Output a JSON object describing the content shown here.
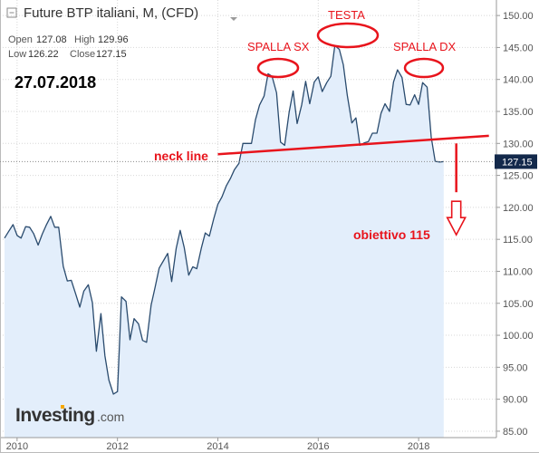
{
  "header": {
    "title": "Future BTP italiani, M, (CFD)",
    "ohlc": [
      {
        "label": "Open",
        "value": "127.08"
      },
      {
        "label": "High",
        "value": "129.96"
      },
      {
        "label": "Low",
        "value": "126.22"
      },
      {
        "label": "Close",
        "value": "127.15"
      }
    ]
  },
  "date_label": "27.07.2018",
  "annotations": {
    "head": "TESTA",
    "left_shoulder": "SPALLA SX",
    "right_shoulder": "SPALLA DX",
    "neckline": "neck line",
    "target": "obiettivo 115"
  },
  "logo": {
    "text": "Investing",
    "suffix": ".com"
  },
  "current_price": "127.15",
  "colors": {
    "line": "#2a4b6e",
    "fill": "#e3eefb",
    "annotation": "#e8141c",
    "price_tag": "#13294b",
    "axis_text": "#555555",
    "grid": "#d7d7d7"
  },
  "chart_data": {
    "type": "area",
    "title": "Future BTP italiani, M, (CFD)",
    "xlabel": "",
    "ylabel": "",
    "xlim": [
      2009.75,
      2019.55
    ],
    "ylim": [
      84,
      152
    ],
    "x_ticks": [
      2010,
      2012,
      2014,
      2016,
      2018
    ],
    "x_tick_labels": [
      "2010",
      "2012",
      "2014",
      "2016",
      "2018"
    ],
    "y_ticks": [
      85,
      90,
      95,
      100,
      105,
      110,
      115,
      120,
      125,
      130,
      135,
      140,
      145,
      150
    ],
    "y_tick_labels": [
      "85.00",
      "90.00",
      "95.00",
      "100.00",
      "105.00",
      "110.00",
      "115.00",
      "120.00",
      "125.00",
      "130.00",
      "135.00",
      "140.00",
      "145.00",
      "150.00"
    ],
    "grid": true,
    "series": [
      {
        "points": [
          [
            2009.75,
            115.2
          ],
          [
            2009.83,
            116.2
          ],
          [
            2009.92,
            117.3
          ],
          [
            2010.0,
            115.6
          ],
          [
            2010.08,
            115.2
          ],
          [
            2010.17,
            117.0
          ],
          [
            2010.25,
            116.9
          ],
          [
            2010.33,
            115.9
          ],
          [
            2010.42,
            114.1
          ],
          [
            2010.5,
            115.8
          ],
          [
            2010.58,
            117.2
          ],
          [
            2010.67,
            118.6
          ],
          [
            2010.75,
            116.9
          ],
          [
            2010.83,
            116.9
          ],
          [
            2010.92,
            110.8
          ],
          [
            2011.0,
            108.5
          ],
          [
            2011.08,
            108.6
          ],
          [
            2011.17,
            106.4
          ],
          [
            2011.25,
            104.4
          ],
          [
            2011.33,
            106.9
          ],
          [
            2011.42,
            107.9
          ],
          [
            2011.5,
            105.1
          ],
          [
            2011.58,
            97.5
          ],
          [
            2011.67,
            103.4
          ],
          [
            2011.75,
            96.8
          ],
          [
            2011.83,
            93.0
          ],
          [
            2011.92,
            90.8
          ],
          [
            2012.0,
            91.2
          ],
          [
            2012.08,
            106.0
          ],
          [
            2012.17,
            105.3
          ],
          [
            2012.25,
            99.3
          ],
          [
            2012.33,
            102.6
          ],
          [
            2012.42,
            101.8
          ],
          [
            2012.5,
            99.2
          ],
          [
            2012.58,
            98.9
          ],
          [
            2012.67,
            104.7
          ],
          [
            2012.75,
            107.5
          ],
          [
            2012.83,
            110.5
          ],
          [
            2012.92,
            111.7
          ],
          [
            2013.0,
            112.8
          ],
          [
            2013.08,
            108.4
          ],
          [
            2013.17,
            113.6
          ],
          [
            2013.25,
            116.4
          ],
          [
            2013.33,
            113.7
          ],
          [
            2013.42,
            109.4
          ],
          [
            2013.5,
            110.7
          ],
          [
            2013.58,
            110.4
          ],
          [
            2013.67,
            113.6
          ],
          [
            2013.75,
            116.0
          ],
          [
            2013.83,
            115.5
          ],
          [
            2013.92,
            118.3
          ],
          [
            2014.0,
            120.5
          ],
          [
            2014.08,
            121.6
          ],
          [
            2014.17,
            123.4
          ],
          [
            2014.25,
            124.5
          ],
          [
            2014.33,
            125.9
          ],
          [
            2014.42,
            126.9
          ],
          [
            2014.5,
            130.0
          ],
          [
            2014.58,
            130.0
          ],
          [
            2014.67,
            130.0
          ],
          [
            2014.75,
            133.7
          ],
          [
            2014.83,
            136.0
          ],
          [
            2014.92,
            137.4
          ],
          [
            2015.0,
            140.9
          ],
          [
            2015.08,
            140.5
          ],
          [
            2015.17,
            137.9
          ],
          [
            2015.25,
            130.2
          ],
          [
            2015.33,
            129.7
          ],
          [
            2015.42,
            134.9
          ],
          [
            2015.5,
            138.2
          ],
          [
            2015.58,
            133.1
          ],
          [
            2015.67,
            136.0
          ],
          [
            2015.75,
            139.7
          ],
          [
            2015.83,
            136.2
          ],
          [
            2015.92,
            139.6
          ],
          [
            2016.0,
            140.4
          ],
          [
            2016.08,
            138.1
          ],
          [
            2016.17,
            139.5
          ],
          [
            2016.25,
            140.5
          ],
          [
            2016.33,
            145.3
          ],
          [
            2016.42,
            144.7
          ],
          [
            2016.5,
            142.3
          ],
          [
            2016.58,
            137.5
          ],
          [
            2016.67,
            133.2
          ],
          [
            2016.75,
            134.0
          ],
          [
            2016.83,
            129.7
          ],
          [
            2016.92,
            130.1
          ],
          [
            2017.0,
            130.3
          ],
          [
            2017.08,
            131.6
          ],
          [
            2017.17,
            131.6
          ],
          [
            2017.25,
            134.7
          ],
          [
            2017.33,
            136.2
          ],
          [
            2017.42,
            135.0
          ],
          [
            2017.5,
            139.6
          ],
          [
            2017.58,
            141.5
          ],
          [
            2017.67,
            140.3
          ],
          [
            2017.75,
            136.1
          ],
          [
            2017.83,
            136.0
          ],
          [
            2017.92,
            137.6
          ],
          [
            2018.0,
            136.1
          ],
          [
            2018.08,
            139.5
          ],
          [
            2018.17,
            138.8
          ],
          [
            2018.25,
            131.0
          ],
          [
            2018.33,
            127.2
          ],
          [
            2018.42,
            127.1
          ],
          [
            2018.5,
            127.15
          ]
        ]
      }
    ],
    "neckline": {
      "from": [
        2014.0,
        128.3
      ],
      "to": [
        2019.4,
        131.2
      ]
    },
    "target_arrow": {
      "x": 2018.75,
      "from": 130.0,
      "to": 115.0
    }
  }
}
